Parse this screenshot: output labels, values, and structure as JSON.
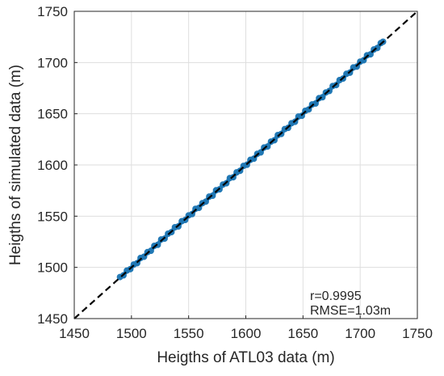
{
  "chart_data": {
    "type": "scatter",
    "title": "",
    "xlabel": "Heigths of ATL03 data (m)",
    "ylabel": "Heigths of simulated data (m)",
    "xlim": [
      1450,
      1750
    ],
    "ylim": [
      1450,
      1750
    ],
    "xticks": [
      "1450",
      "1500",
      "1550",
      "1600",
      "1650",
      "1700",
      "1750"
    ],
    "yticks": [
      "1450",
      "1500",
      "1550",
      "1600",
      "1650",
      "1700",
      "1750"
    ],
    "grid": true,
    "marker_color": "#1f77b4",
    "reference_line": {
      "style": "dashed",
      "color": "#000000",
      "from": [
        1450,
        1450
      ],
      "to": [
        1750,
        1750
      ]
    },
    "series": [
      {
        "x_range": [
          1490,
          1720
        ],
        "points": [
          [
            1490,
            1490.6
          ],
          [
            1493,
            1492.2
          ],
          [
            1496,
            1496.9
          ],
          [
            1499,
            1498.3
          ],
          [
            1502,
            1502.8
          ],
          [
            1505,
            1504.1
          ],
          [
            1508,
            1509.2
          ],
          [
            1511,
            1510.4
          ],
          [
            1514,
            1514.9
          ],
          [
            1517,
            1516.2
          ],
          [
            1520,
            1521.1
          ],
          [
            1523,
            1522.0
          ],
          [
            1526,
            1527.3
          ],
          [
            1529,
            1528.1
          ],
          [
            1532,
            1532.9
          ],
          [
            1535,
            1534.4
          ],
          [
            1538,
            1539.2
          ],
          [
            1541,
            1540.0
          ],
          [
            1544,
            1545.1
          ],
          [
            1547,
            1546.3
          ],
          [
            1550,
            1550.8
          ],
          [
            1553,
            1552.0
          ],
          [
            1556,
            1557.2
          ],
          [
            1559,
            1558.1
          ],
          [
            1562,
            1562.7
          ],
          [
            1565,
            1564.2
          ],
          [
            1568,
            1569.1
          ],
          [
            1571,
            1570.0
          ],
          [
            1574,
            1575.3
          ],
          [
            1577,
            1576.2
          ],
          [
            1580,
            1580.9
          ],
          [
            1583,
            1582.1
          ],
          [
            1586,
            1587.2
          ],
          [
            1589,
            1588.0
          ],
          [
            1592,
            1592.8
          ],
          [
            1595,
            1594.3
          ],
          [
            1598,
            1599.1
          ],
          [
            1601,
            1600.2
          ],
          [
            1604,
            1605.0
          ],
          [
            1607,
            1606.1
          ],
          [
            1610,
            1610.9
          ],
          [
            1613,
            1612.2
          ],
          [
            1616,
            1617.1
          ],
          [
            1619,
            1618.0
          ],
          [
            1622,
            1622.8
          ],
          [
            1625,
            1624.1
          ],
          [
            1628,
            1629.2
          ],
          [
            1631,
            1630.3
          ],
          [
            1634,
            1635.0
          ],
          [
            1637,
            1636.2
          ],
          [
            1640,
            1640.8
          ],
          [
            1643,
            1642.1
          ],
          [
            1646,
            1647.3
          ],
          [
            1649,
            1648.0
          ],
          [
            1652,
            1652.9
          ],
          [
            1655,
            1654.2
          ],
          [
            1658,
            1659.1
          ],
          [
            1661,
            1660.0
          ],
          [
            1664,
            1665.2
          ],
          [
            1667,
            1666.1
          ],
          [
            1670,
            1670.8
          ],
          [
            1673,
            1672.2
          ],
          [
            1676,
            1677.1
          ],
          [
            1679,
            1678.0
          ],
          [
            1682,
            1682.9
          ],
          [
            1685,
            1684.3
          ],
          [
            1688,
            1689.0
          ],
          [
            1691,
            1690.1
          ],
          [
            1694,
            1695.2
          ],
          [
            1697,
            1696.0
          ],
          [
            1700,
            1700.9
          ],
          [
            1703,
            1702.2
          ],
          [
            1706,
            1707.1
          ],
          [
            1709,
            1708.0
          ],
          [
            1712,
            1712.8
          ],
          [
            1715,
            1714.2
          ],
          [
            1718,
            1719.0
          ],
          [
            1720,
            1720.3
          ]
        ]
      }
    ],
    "annotations": [
      "r=0.9995",
      "RMSE=1.03m"
    ]
  }
}
